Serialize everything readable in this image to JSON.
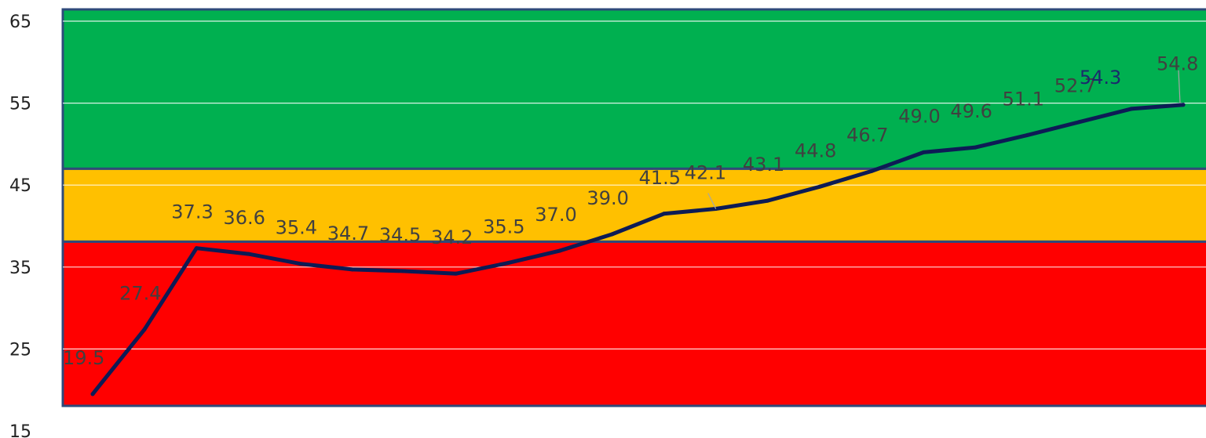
{
  "chart_data": {
    "type": "line",
    "title": "",
    "xlabel": "",
    "ylabel": "",
    "ylim": [
      15,
      65
    ],
    "yticks": [
      15,
      25,
      35,
      45,
      55,
      65
    ],
    "grid": true,
    "legend": "none",
    "series": [
      {
        "color": "#0d1b55",
        "values": [
          19.5,
          27.4,
          37.3,
          36.6,
          35.4,
          34.7,
          34.5,
          34.2,
          35.5,
          37.0,
          39.0,
          41.5,
          42.1,
          43.1,
          44.8,
          46.7,
          49.0,
          49.6,
          51.1,
          52.7,
          54.3,
          54.8
        ],
        "labels": [
          "19.5",
          "27.4",
          "37.3",
          "36.6",
          "35.4",
          "34.7",
          "34.5",
          "34.2",
          "35.5",
          "37.0",
          "39.0",
          "41.5",
          "42.1",
          "43.1",
          "44.8",
          "46.7",
          "49.0",
          "49.6",
          "51.1",
          "52.7",
          "54.3",
          "54.8"
        ]
      }
    ],
    "bands": [
      {
        "name": "red-zone",
        "from": 15,
        "to": 38.1,
        "color": "#ff0000"
      },
      {
        "name": "yellow-zone",
        "from": 38.1,
        "to": 47.0,
        "color": "#ffc000"
      },
      {
        "name": "green-zone",
        "from": 47.0,
        "to": 65,
        "color": "#00b050"
      }
    ],
    "band_border_color": "#2e4a7a"
  }
}
